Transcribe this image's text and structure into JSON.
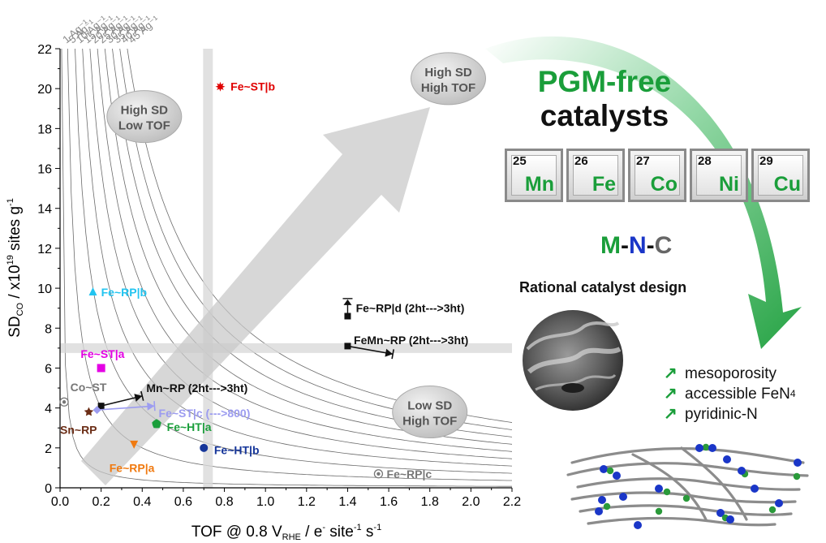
{
  "chart_data": {
    "type": "scatter",
    "xlabel": "TOF @ 0.8 V",
    "xlabel_sub": "RHE",
    "xlabel_tail": " / e",
    "xlabel_sup1": "-",
    "xlabel_tail2": " site",
    "xlabel_sup2": "-1",
    "xlabel_tail3": " s",
    "xlabel_sup3": "-1",
    "ylabel_main": "SD",
    "ylabel_sub": "CO",
    "ylabel_mid": " / x10",
    "ylabel_sup": "19",
    "ylabel_tail": " sites g",
    "ylabel_sup2": "-1",
    "xlim": [
      0.0,
      2.2
    ],
    "ylim": [
      0,
      22
    ],
    "x_ticks": [
      "0.0",
      "0.2",
      "0.4",
      "0.6",
      "0.8",
      "1.0",
      "1.2",
      "1.4",
      "1.6",
      "1.8",
      "2.0",
      "2.2"
    ],
    "y_ticks": [
      "0",
      "2",
      "4",
      "6",
      "8",
      "10",
      "12",
      "14",
      "16",
      "18",
      "20",
      "22"
    ],
    "iso_current_curves": [
      {
        "label": "1 Ag⁻¹",
        "value": 1
      },
      {
        "label": "5 Ag⁻¹",
        "value": 5
      },
      {
        "label": "10 Ag⁻¹",
        "value": 10
      },
      {
        "label": "15 Ag⁻¹",
        "value": 15
      },
      {
        "label": "20 Ag⁻¹",
        "value": 20
      },
      {
        "label": "25 Ag⁻¹",
        "value": 25
      },
      {
        "label": "30 Ag⁻¹",
        "value": 30
      },
      {
        "label": "35 Ag⁻¹",
        "value": 35
      },
      {
        "label": "40 Ag⁻¹",
        "value": 40
      },
      {
        "label": "45 Ag⁻¹",
        "value": 45
      }
    ],
    "threshold_lines": {
      "vertical_x": 0.72,
      "horizontal_y": 7.0
    },
    "points": [
      {
        "name": "Fe~ST|b",
        "x": 0.78,
        "y": 20.1,
        "marker": "star",
        "color": "#e00000",
        "label_dx": 0.05,
        "label_dy": 0
      },
      {
        "name": "Fe~RP|b",
        "x": 0.16,
        "y": 9.8,
        "marker": "triangle",
        "color": "#22c4f0",
        "label_dx": 0.04,
        "label_dy": 0
      },
      {
        "name": "Fe~ST|a",
        "x": 0.2,
        "y": 6.0,
        "marker": "square",
        "color": "#e400e4",
        "label_dx": -0.1,
        "label_dy": 0.7
      },
      {
        "name": "Co~ST",
        "x": 0.02,
        "y": 4.3,
        "marker": "circle-grey",
        "color": "#777777",
        "label_dx": 0.03,
        "label_dy": 0.75
      },
      {
        "name": "Sn~RP",
        "x": 0.14,
        "y": 3.8,
        "marker": "star",
        "color": "#6b2d16",
        "label_dx": -0.14,
        "label_dy": -0.9
      },
      {
        "name": "Fe~HT|a",
        "x": 0.47,
        "y": 3.2,
        "marker": "pentagon",
        "color": "#1a9e3a",
        "label_dx": 0.05,
        "label_dy": -0.15
      },
      {
        "name": "Fe~RP|a",
        "x": 0.36,
        "y": 2.2,
        "marker": "triangle-down",
        "color": "#f07a10",
        "label_dx": -0.12,
        "label_dy": -1.2
      },
      {
        "name": "Fe~HT|b",
        "x": 0.7,
        "y": 2.0,
        "marker": "circle",
        "color": "#16369a",
        "label_dx": 0.05,
        "label_dy": -0.1
      },
      {
        "name": "Fe~RP|c",
        "x": 1.55,
        "y": 0.7,
        "marker": "circle-grey",
        "color": "#777777",
        "label_dx": 0.04,
        "label_dy": 0
      }
    ],
    "transitions": [
      {
        "name": "Mn~RP (2ht--->3ht)",
        "from": [
          0.2,
          4.1
        ],
        "to": [
          0.4,
          4.6
        ],
        "color": "#111111",
        "label_at": [
          0.42,
          5.0
        ],
        "label_color": "#111111"
      },
      {
        "name": "Fe~ST|c (--->800)",
        "from": [
          0.18,
          3.9
        ],
        "to": [
          0.46,
          4.1
        ],
        "color": "#9c9cf0",
        "label_at": [
          0.48,
          3.75
        ],
        "label_color": "#9c9cf0"
      },
      {
        "name": "FeMn~RP (2ht--->3ht)",
        "from": [
          1.4,
          7.1
        ],
        "to": [
          1.62,
          6.7
        ],
        "color": "#111111",
        "label_at": [
          1.43,
          7.4
        ],
        "label_color": "#111111"
      }
    ],
    "range_marker": {
      "name": "Fe~RP|d (2ht--->3ht)",
      "x": 1.4,
      "y_low": 8.6,
      "y_high": 9.4,
      "label_at": [
        1.44,
        9.0
      ]
    },
    "regions": [
      {
        "line1": "High SD",
        "line2": "Low TOF",
        "x": 0.41,
        "y": 18.6
      },
      {
        "line1": "High SD",
        "line2": "High TOF",
        "x": 1.89,
        "y": 20.5
      },
      {
        "line1": "Low SD",
        "line2": "High TOF",
        "x": 1.8,
        "y": 3.8
      }
    ]
  },
  "title_line1": "PGM-free",
  "title_line2": "catalysts",
  "elements": [
    {
      "number": "25",
      "symbol": "Mn"
    },
    {
      "number": "26",
      "symbol": "Fe"
    },
    {
      "number": "27",
      "symbol": "Co"
    },
    {
      "number": "28",
      "symbol": "Ni"
    },
    {
      "number": "29",
      "symbol": "Cu"
    }
  ],
  "mnc": {
    "m": "M",
    "dash1": "-",
    "n": "N",
    "dash2": "-",
    "c": "C"
  },
  "design_label": "Rational catalyst design",
  "features": [
    {
      "text": "mesoporosity"
    },
    {
      "text": "accessible FeN",
      "sub": "4"
    },
    {
      "text": "pyridinic-N"
    }
  ],
  "colors": {
    "accent_green": "#1a9e3a",
    "nitrogen_blue": "#1a36c8",
    "metal_green": "#2a9a3a"
  }
}
